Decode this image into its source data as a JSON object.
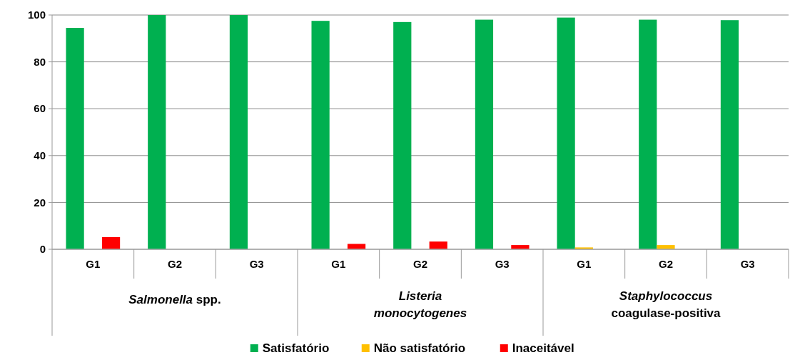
{
  "chart_data": {
    "type": "bar",
    "categories": [
      "G1",
      "G2",
      "G3",
      "G1",
      "G2",
      "G3",
      "G1",
      "G2",
      "G3"
    ],
    "series": [
      {
        "name": "Satisfatório",
        "color": "#00b050",
        "values": [
          94.5,
          100,
          100,
          97.5,
          97,
          98,
          98.9,
          98,
          97.8
        ]
      },
      {
        "name": "Não satisfatório",
        "color": "#ffc000",
        "values": [
          0,
          0,
          0,
          0,
          0,
          0,
          0.8,
          1.8,
          0
        ]
      },
      {
        "name": "Inaceitável",
        "color": "#ff0000",
        "values": [
          5.2,
          0,
          0,
          2.3,
          3.3,
          1.8,
          0,
          0,
          0
        ]
      }
    ],
    "annotations": [
      "Salmonella spp.",
      "Listeria monocytogenes",
      "Staphylococcus coagulase-positiva"
    ],
    "ylim": [
      0,
      100
    ],
    "yticks": [
      0,
      20,
      40,
      60,
      80,
      100
    ],
    "grid": "y",
    "legend": "bottom"
  }
}
